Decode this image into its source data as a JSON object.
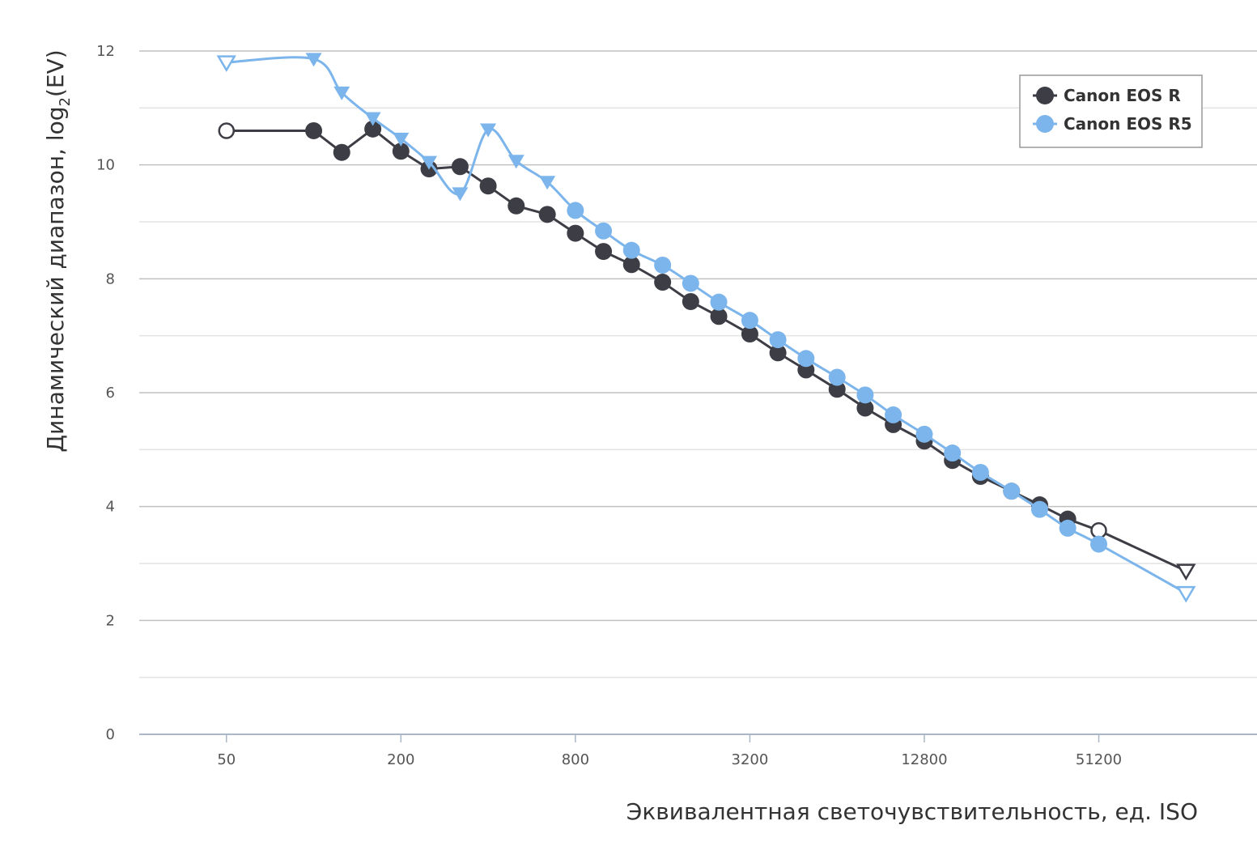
{
  "chart_data": {
    "type": "line",
    "title": "",
    "xlabel": "Эквивалентная светочувствительность, ед. ISO",
    "ylabel": {
      "main": "Динамический диапазон, log",
      "sub": "2",
      "suffix": "(EV)"
    },
    "x_scale": "log2",
    "x_range": [
      25,
      180000
    ],
    "x_ticks": [
      50,
      200,
      800,
      3200,
      12800,
      51200
    ],
    "ylim": [
      0,
      12
    ],
    "y_ticks": [
      0,
      2,
      4,
      6,
      8,
      10,
      12
    ],
    "grid": true,
    "legend_position": "top-right",
    "series": [
      {
        "name": "Canon EOS R",
        "color": "#3d3d45",
        "smooth": false,
        "points": [
          {
            "x": 50,
            "y": 10.6,
            "marker": "circle-open"
          },
          {
            "x": 100,
            "y": 10.6,
            "marker": "circle"
          },
          {
            "x": 125,
            "y": 10.22,
            "marker": "circle"
          },
          {
            "x": 160,
            "y": 10.63,
            "marker": "circle"
          },
          {
            "x": 200,
            "y": 10.24,
            "marker": "circle"
          },
          {
            "x": 250,
            "y": 9.93,
            "marker": "circle"
          },
          {
            "x": 320,
            "y": 9.97,
            "marker": "circle"
          },
          {
            "x": 400,
            "y": 9.63,
            "marker": "circle"
          },
          {
            "x": 500,
            "y": 9.28,
            "marker": "circle"
          },
          {
            "x": 640,
            "y": 9.13,
            "marker": "circle"
          },
          {
            "x": 800,
            "y": 8.8,
            "marker": "circle"
          },
          {
            "x": 1000,
            "y": 8.48,
            "marker": "circle"
          },
          {
            "x": 1250,
            "y": 8.25,
            "marker": "circle"
          },
          {
            "x": 1600,
            "y": 7.94,
            "marker": "circle"
          },
          {
            "x": 2000,
            "y": 7.6,
            "marker": "circle"
          },
          {
            "x": 2500,
            "y": 7.34,
            "marker": "circle"
          },
          {
            "x": 3200,
            "y": 7.03,
            "marker": "circle"
          },
          {
            "x": 4000,
            "y": 6.7,
            "marker": "circle"
          },
          {
            "x": 5000,
            "y": 6.4,
            "marker": "circle"
          },
          {
            "x": 6400,
            "y": 6.06,
            "marker": "circle"
          },
          {
            "x": 8000,
            "y": 5.73,
            "marker": "circle"
          },
          {
            "x": 10000,
            "y": 5.44,
            "marker": "circle"
          },
          {
            "x": 12800,
            "y": 5.15,
            "marker": "circle"
          },
          {
            "x": 16000,
            "y": 4.81,
            "marker": "circle"
          },
          {
            "x": 20000,
            "y": 4.53,
            "marker": "circle"
          },
          {
            "x": 25600,
            "y": 4.27,
            "marker": "circle"
          },
          {
            "x": 32000,
            "y": 4.03,
            "marker": "circle"
          },
          {
            "x": 40000,
            "y": 3.78,
            "marker": "circle"
          },
          {
            "x": 51200,
            "y": 3.58,
            "marker": "circle-open"
          },
          {
            "x": 102400,
            "y": 2.87,
            "marker": "triangle-open"
          }
        ]
      },
      {
        "name": "Canon EOS R5",
        "color": "#7cb5ec",
        "smooth": true,
        "points": [
          {
            "x": 50,
            "y": 11.8,
            "marker": "triangle-open"
          },
          {
            "x": 100,
            "y": 11.86,
            "marker": "triangle"
          },
          {
            "x": 125,
            "y": 11.27,
            "marker": "triangle"
          },
          {
            "x": 160,
            "y": 10.82,
            "marker": "triangle"
          },
          {
            "x": 200,
            "y": 10.46,
            "marker": "triangle"
          },
          {
            "x": 250,
            "y": 10.05,
            "marker": "triangle"
          },
          {
            "x": 320,
            "y": 9.5,
            "marker": "triangle"
          },
          {
            "x": 400,
            "y": 10.62,
            "marker": "triangle"
          },
          {
            "x": 500,
            "y": 10.07,
            "marker": "triangle"
          },
          {
            "x": 640,
            "y": 9.7,
            "marker": "triangle"
          },
          {
            "x": 800,
            "y": 9.2,
            "marker": "circle"
          },
          {
            "x": 1000,
            "y": 8.84,
            "marker": "circle"
          },
          {
            "x": 1250,
            "y": 8.5,
            "marker": "circle"
          },
          {
            "x": 1600,
            "y": 8.24,
            "marker": "circle"
          },
          {
            "x": 2000,
            "y": 7.92,
            "marker": "circle"
          },
          {
            "x": 2500,
            "y": 7.59,
            "marker": "circle"
          },
          {
            "x": 3200,
            "y": 7.27,
            "marker": "circle"
          },
          {
            "x": 4000,
            "y": 6.93,
            "marker": "circle"
          },
          {
            "x": 5000,
            "y": 6.6,
            "marker": "circle"
          },
          {
            "x": 6400,
            "y": 6.27,
            "marker": "circle"
          },
          {
            "x": 8000,
            "y": 5.96,
            "marker": "circle"
          },
          {
            "x": 10000,
            "y": 5.61,
            "marker": "circle"
          },
          {
            "x": 12800,
            "y": 5.27,
            "marker": "circle"
          },
          {
            "x": 16000,
            "y": 4.94,
            "marker": "circle"
          },
          {
            "x": 20000,
            "y": 4.6,
            "marker": "circle"
          },
          {
            "x": 25600,
            "y": 4.27,
            "marker": "circle"
          },
          {
            "x": 32000,
            "y": 3.95,
            "marker": "circle"
          },
          {
            "x": 40000,
            "y": 3.62,
            "marker": "circle"
          },
          {
            "x": 51200,
            "y": 3.34,
            "marker": "circle"
          },
          {
            "x": 102400,
            "y": 2.48,
            "marker": "triangle-open"
          }
        ]
      }
    ]
  }
}
